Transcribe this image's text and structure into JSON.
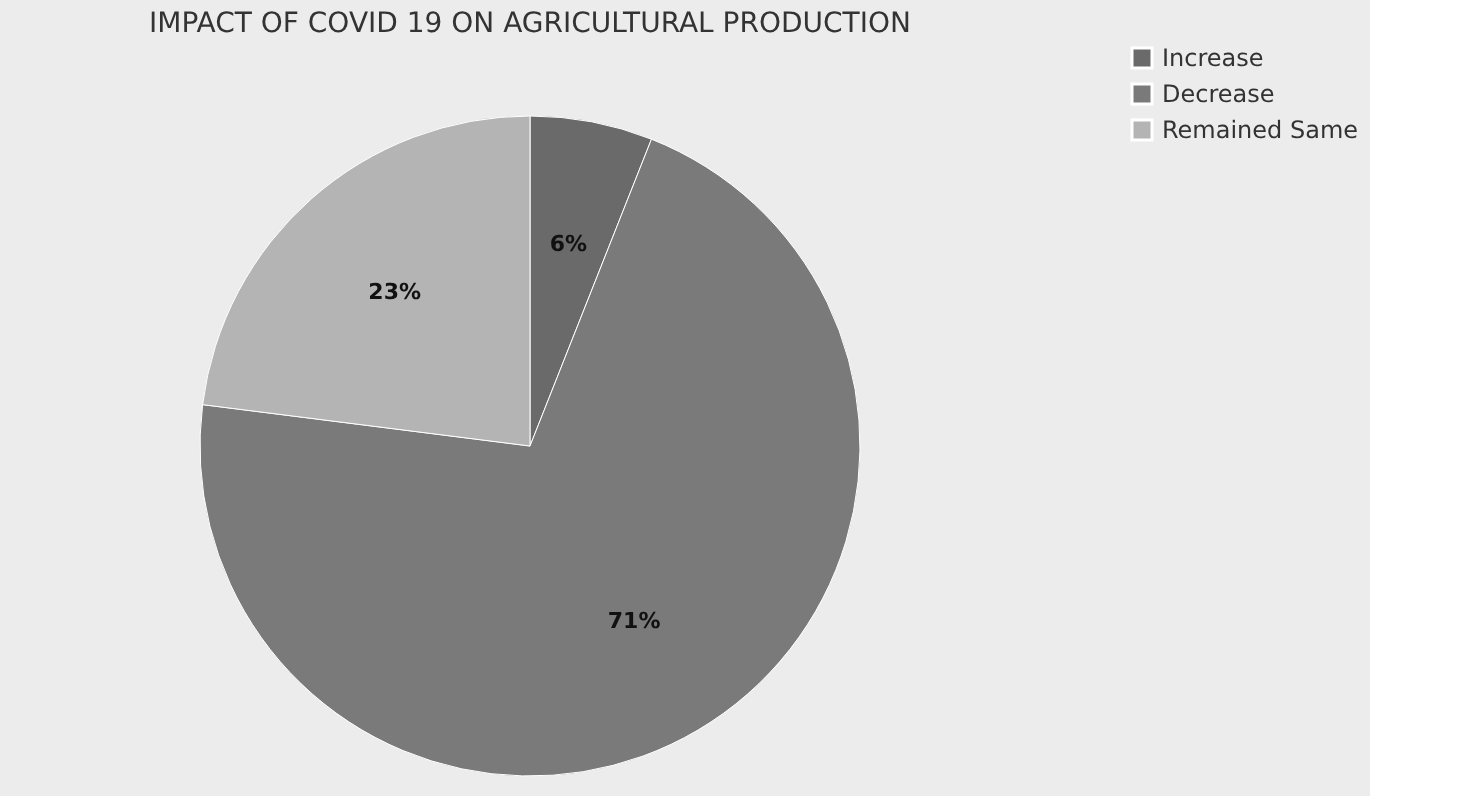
{
  "chart_data": {
    "type": "pie",
    "title": "IMPACT OF COVID 19 ON AGRICULTURAL PRODUCTION",
    "categories": [
      "Increase",
      "Decrease",
      "Remained Same"
    ],
    "values": [
      6,
      71,
      23
    ],
    "colors": [
      "#6a6a6a",
      "#7a7a7a",
      "#b4b4b4"
    ],
    "value_labels": [
      "6%",
      "71%",
      "23%"
    ],
    "legend": "right"
  }
}
